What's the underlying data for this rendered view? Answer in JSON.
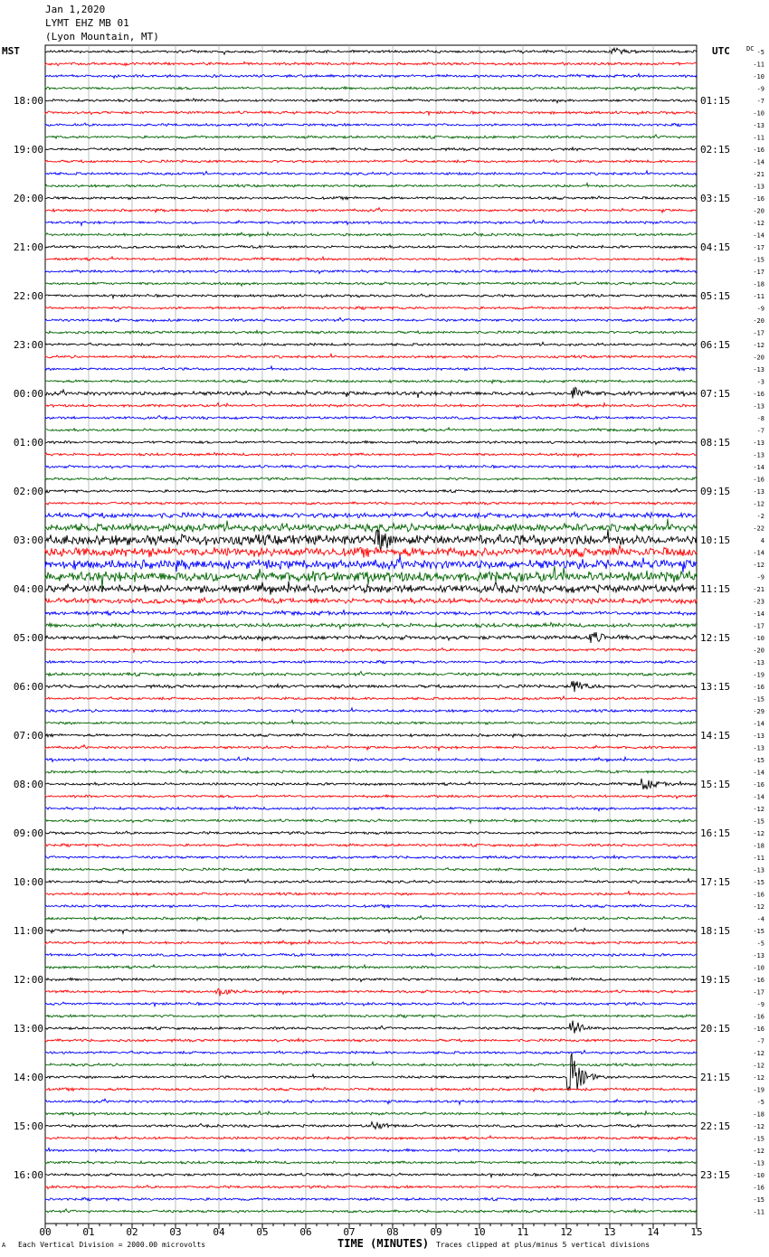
{
  "header": {
    "date": "Jan 1,2020",
    "station": "LYMT EHZ MB 01",
    "location": "(Lyon Mountain, MT)"
  },
  "left_tz": "MST",
  "right_tz": "UTC",
  "dc_label": "DC",
  "footer": {
    "scale_marker": "A",
    "scale": "Each Vertical Division = 2000.00 microvolts",
    "clip": "Traces clipped at plus/minus 5 vertical divisions"
  },
  "chart_data": {
    "type": "line",
    "title": "Jan 1,2020  LYMT EHZ MB 01  (Lyon Mountain, MT)",
    "xlabel": "TIME (MINUTES)",
    "x_ticks": [
      "00",
      "01",
      "02",
      "03",
      "04",
      "05",
      "06",
      "07",
      "08",
      "09",
      "10",
      "11",
      "12",
      "13",
      "14",
      "15"
    ],
    "xlim": [
      0,
      15
    ],
    "trace_colors": [
      "#000000",
      "#ff0000",
      "#0000ff",
      "#006400"
    ],
    "left_hour_labels": [
      "18:00",
      "19:00",
      "20:00",
      "21:00",
      "22:00",
      "23:00",
      "00:00",
      "01:00",
      "02:00",
      "03:00",
      "04:00",
      "05:00",
      "06:00",
      "07:00",
      "08:00",
      "09:00",
      "10:00",
      "11:00",
      "12:00",
      "13:00",
      "14:00",
      "15:00",
      "16:00"
    ],
    "right_hour_labels": [
      "01:15",
      "02:15",
      "03:15",
      "04:15",
      "05:15",
      "06:15",
      "07:15",
      "08:15",
      "09:15",
      "10:15",
      "11:15",
      "12:15",
      "13:15",
      "14:15",
      "15:15",
      "16:15",
      "17:15",
      "18:15",
      "19:15",
      "20:15",
      "21:15",
      "22:15",
      "23:15"
    ],
    "dc_offsets": [
      -5,
      -11,
      -10,
      -9,
      -7,
      -10,
      -13,
      -11,
      -16,
      -14,
      -21,
      -13,
      -16,
      -20,
      -12,
      -14,
      -17,
      -15,
      -17,
      -18,
      -11,
      -9,
      -20,
      -17,
      -12,
      -20,
      -13,
      -3,
      -16,
      -13,
      -8,
      -7,
      -13,
      -13,
      -14,
      -16,
      -13,
      -12,
      -2,
      -22,
      4,
      -14,
      -12,
      -9,
      -21,
      -23,
      -14,
      -17,
      -10,
      -20,
      -13,
      -19,
      -16,
      -15,
      -29,
      -14,
      -13,
      -13,
      -15,
      -14,
      -16,
      -14,
      -12,
      -15,
      -12,
      -18,
      -11,
      -13,
      -15,
      -16,
      -12,
      -4,
      -15,
      -5,
      -13,
      -10,
      -16,
      -17,
      -9,
      -16,
      -16,
      -7,
      -12,
      -12,
      -12,
      -19,
      -5,
      -18,
      -12,
      -15,
      -12,
      -13,
      -10,
      -16,
      -15,
      -11
    ],
    "trace_activity": [
      1,
      1,
      1,
      1,
      1,
      1,
      1,
      1,
      1,
      1,
      1,
      1,
      1,
      1,
      1,
      1,
      1,
      1,
      1,
      1,
      1,
      1,
      1,
      1,
      1,
      1,
      1,
      1,
      1.5,
      1,
      1,
      1,
      1,
      1,
      1,
      1,
      1,
      1,
      2,
      3,
      4,
      3.5,
      3.5,
      4,
      3,
      2,
      1.5,
      1.5,
      1.5,
      1,
      1,
      1.2,
      1.2,
      1,
      1,
      1,
      1,
      1,
      1,
      1,
      1,
      1,
      1,
      1,
      1,
      1,
      1,
      1,
      1,
      1,
      1,
      1,
      1,
      1,
      1,
      1,
      1,
      1,
      1,
      1,
      1,
      1,
      1,
      1,
      1,
      1,
      1,
      1,
      1,
      1,
      1,
      1,
      1,
      1,
      1,
      1
    ],
    "events": [
      {
        "trace": 0,
        "minute": 13.1,
        "amp": 4
      },
      {
        "trace": 28,
        "minute": 12.2,
        "amp": 5
      },
      {
        "trace": 40,
        "minute": 7.7,
        "amp": 8
      },
      {
        "trace": 48,
        "minute": 12.6,
        "amp": 6
      },
      {
        "trace": 52,
        "minute": 12.2,
        "amp": 6
      },
      {
        "trace": 60,
        "minute": 13.8,
        "amp": 6
      },
      {
        "trace": 77,
        "minute": 4.0,
        "amp": 5
      },
      {
        "trace": 80,
        "minute": 12.15,
        "amp": 9
      },
      {
        "trace": 84,
        "minute": 12.1,
        "amp": 30
      },
      {
        "trace": 88,
        "minute": 7.6,
        "amp": 4
      }
    ],
    "grid": true
  }
}
